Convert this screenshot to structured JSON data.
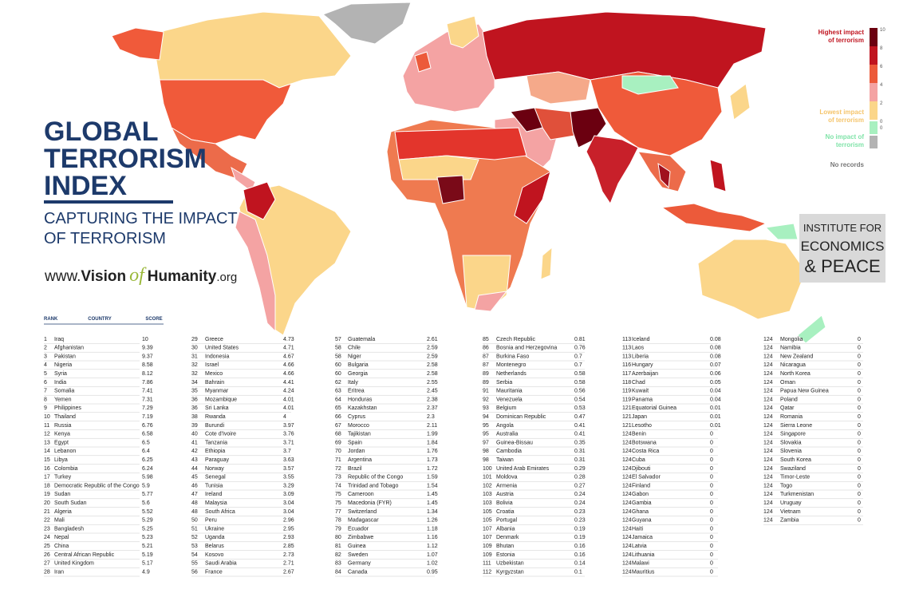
{
  "header": {
    "title_lines": [
      "GLOBAL",
      "TERRORISM",
      "INDEX"
    ],
    "subtitle_lines": [
      "CAPTURING THE IMPACT",
      "OF TERRORISM"
    ],
    "url": [
      "www.",
      "Vision",
      "of",
      "Humanity",
      ".org"
    ]
  },
  "logo": [
    "INSTITUTE FOR",
    "ECONOMICS",
    "& PEACE"
  ],
  "legend": {
    "highest": [
      "Highest impact",
      "of terrorism"
    ],
    "lowest": [
      "Lowest impact",
      "of terrorism"
    ],
    "none": [
      "No impact of",
      "terrorism"
    ],
    "no_records": "No records",
    "ticks": [
      10,
      8,
      6,
      4,
      2,
      0
    ],
    "no_impact_tick": 0,
    "colors": [
      "#6b0010",
      "#c0141f",
      "#ec5a3a",
      "#f4a3a3",
      "#fbd68a",
      "#a8f0c0",
      "#b3b3b3"
    ]
  },
  "table": {
    "columns": [
      "RANK",
      "COUNTRY",
      "SCORE"
    ],
    "rows": [
      [
        1,
        "Iraq",
        10
      ],
      [
        2,
        "Afghanistan",
        9.39
      ],
      [
        3,
        "Pakistan",
        9.37
      ],
      [
        4,
        "Nigeria",
        8.58
      ],
      [
        5,
        "Syria",
        8.12
      ],
      [
        6,
        "India",
        7.86
      ],
      [
        7,
        "Somalia",
        7.41
      ],
      [
        8,
        "Yemen",
        7.31
      ],
      [
        9,
        "Philippines",
        7.29
      ],
      [
        10,
        "Thailand",
        7.19
      ],
      [
        11,
        "Russia",
        6.76
      ],
      [
        12,
        "Kenya",
        6.58
      ],
      [
        13,
        "Egypt",
        6.5
      ],
      [
        14,
        "Lebanon",
        6.4
      ],
      [
        15,
        "Libya",
        6.25
      ],
      [
        16,
        "Colombia",
        6.24
      ],
      [
        17,
        "Turkey",
        5.98
      ],
      [
        18,
        "Democratic Republic of the Congo",
        5.9
      ],
      [
        19,
        "Sudan",
        5.77
      ],
      [
        20,
        "South Sudan",
        5.6
      ],
      [
        21,
        "Algeria",
        5.52
      ],
      [
        22,
        "Mali",
        5.29
      ],
      [
        23,
        "Bangladesh",
        5.25
      ],
      [
        24,
        "Nepal",
        5.23
      ],
      [
        25,
        "China",
        5.21
      ],
      [
        26,
        "Central African Republic",
        5.19
      ],
      [
        27,
        "United Kingdom",
        5.17
      ],
      [
        28,
        "Iran",
        4.9
      ],
      [
        29,
        "Greece",
        4.73
      ],
      [
        30,
        "United States",
        4.71
      ],
      [
        31,
        "Indonesia",
        4.67
      ],
      [
        32,
        "Israel",
        4.66
      ],
      [
        32,
        "Mexico",
        4.66
      ],
      [
        34,
        "Bahrain",
        4.41
      ],
      [
        35,
        "Myanmar",
        4.24
      ],
      [
        36,
        "Mozambique",
        4.01
      ],
      [
        36,
        "Sri Lanka",
        4.01
      ],
      [
        38,
        "Rwanda",
        4
      ],
      [
        39,
        "Burundi",
        3.97
      ],
      [
        40,
        "Cote d'Ivoire",
        3.76
      ],
      [
        41,
        "Tanzania",
        3.71
      ],
      [
        42,
        "Ethiopia",
        3.7
      ],
      [
        43,
        "Paraguay",
        3.63
      ],
      [
        44,
        "Norway",
        3.57
      ],
      [
        45,
        "Senegal",
        3.55
      ],
      [
        46,
        "Tunisia",
        3.29
      ],
      [
        47,
        "Ireland",
        3.09
      ],
      [
        48,
        "Malaysia",
        3.04
      ],
      [
        48,
        "South Africa",
        3.04
      ],
      [
        50,
        "Peru",
        2.96
      ],
      [
        51,
        "Ukraine",
        2.95
      ],
      [
        52,
        "Uganda",
        2.93
      ],
      [
        53,
        "Belarus",
        2.85
      ],
      [
        54,
        "Kosovo",
        2.73
      ],
      [
        55,
        "Saudi Arabia",
        2.71
      ],
      [
        56,
        "France",
        2.67
      ],
      [
        57,
        "Guatemala",
        2.61
      ],
      [
        58,
        "Chile",
        2.59
      ],
      [
        58,
        "Niger",
        2.59
      ],
      [
        60,
        "Bulgaria",
        2.58
      ],
      [
        60,
        "Georgia",
        2.58
      ],
      [
        62,
        "Italy",
        2.55
      ],
      [
        63,
        "Eritrea",
        2.45
      ],
      [
        64,
        "Honduras",
        2.38
      ],
      [
        65,
        "Kazakhstan",
        2.37
      ],
      [
        66,
        "Cyprus",
        2.3
      ],
      [
        67,
        "Morocco",
        2.11
      ],
      [
        68,
        "Tajikistan",
        1.99
      ],
      [
        69,
        "Spain",
        1.84
      ],
      [
        70,
        "Jordan",
        1.76
      ],
      [
        71,
        "Argentina",
        1.73
      ],
      [
        72,
        "Brazil",
        1.72
      ],
      [
        73,
        "Republic of the Congo",
        1.59
      ],
      [
        74,
        "Trinidad and Tobago",
        1.54
      ],
      [
        75,
        "Cameroon",
        1.45
      ],
      [
        75,
        "Macedonia (FYR)",
        1.45
      ],
      [
        77,
        "Switzerland",
        1.34
      ],
      [
        78,
        "Madagascar",
        1.26
      ],
      [
        79,
        "Ecuador",
        1.18
      ],
      [
        80,
        "Zimbabwe",
        1.16
      ],
      [
        81,
        "Guinea",
        1.12
      ],
      [
        82,
        "Sweden",
        1.07
      ],
      [
        83,
        "Germany",
        1.02
      ],
      [
        84,
        "Canada",
        0.95
      ],
      [
        85,
        "Czech Republic",
        0.81
      ],
      [
        86,
        "Bosnia and Herzegovina",
        0.76
      ],
      [
        87,
        "Burkina Faso",
        0.7
      ],
      [
        87,
        "Montenegro",
        0.7
      ],
      [
        89,
        "Netherlands",
        0.58
      ],
      [
        89,
        "Serbia",
        0.58
      ],
      [
        91,
        "Mauritania",
        0.56
      ],
      [
        92,
        "Venezuela",
        0.54
      ],
      [
        93,
        "Belgium",
        0.53
      ],
      [
        94,
        "Dominican Republic",
        0.47
      ],
      [
        95,
        "Angola",
        0.41
      ],
      [
        95,
        "Australia",
        0.41
      ],
      [
        97,
        "Guinea-Bissau",
        0.35
      ],
      [
        98,
        "Cambodia",
        0.31
      ],
      [
        98,
        "Taiwan",
        0.31
      ],
      [
        100,
        "United Arab Emirates",
        0.29
      ],
      [
        101,
        "Moldova",
        0.28
      ],
      [
        102,
        "Armenia",
        0.27
      ],
      [
        103,
        "Austria",
        0.24
      ],
      [
        103,
        "Bolivia",
        0.24
      ],
      [
        105,
        "Croatia",
        0.23
      ],
      [
        105,
        "Portugal",
        0.23
      ],
      [
        107,
        "Albania",
        0.19
      ],
      [
        107,
        "Denmark",
        0.19
      ],
      [
        109,
        "Bhutan",
        0.16
      ],
      [
        109,
        "Estonia",
        0.16
      ],
      [
        111,
        "Uzbekistan",
        0.14
      ],
      [
        112,
        "Kyrgyzstan",
        0.1
      ],
      [
        113,
        "Iceland",
        0.08
      ],
      [
        113,
        "Laos",
        0.08
      ],
      [
        113,
        "Liberia",
        0.08
      ],
      [
        116,
        "Hungary",
        0.07
      ],
      [
        117,
        "Azerbaijan",
        0.06
      ],
      [
        118,
        "Chad",
        0.05
      ],
      [
        119,
        "Kuwait",
        0.04
      ],
      [
        119,
        "Panama",
        0.04
      ],
      [
        121,
        "Equatorial Guinea",
        0.01
      ],
      [
        121,
        "Japan",
        0.01
      ],
      [
        121,
        "Lesotho",
        0.01
      ],
      [
        124,
        "Benin",
        0
      ],
      [
        124,
        "Botswana",
        0
      ],
      [
        124,
        "Costa Rica",
        0
      ],
      [
        124,
        "Cuba",
        0
      ],
      [
        124,
        "Djibouti",
        0
      ],
      [
        124,
        "El Salvador",
        0
      ],
      [
        124,
        "Finland",
        0
      ],
      [
        124,
        "Gabon",
        0
      ],
      [
        124,
        "Gambia",
        0
      ],
      [
        124,
        "Ghana",
        0
      ],
      [
        124,
        "Guyana",
        0
      ],
      [
        124,
        "Haiti",
        0
      ],
      [
        124,
        "Jamaica",
        0
      ],
      [
        124,
        "Latvia",
        0
      ],
      [
        124,
        "Lithuania",
        0
      ],
      [
        124,
        "Malawi",
        0
      ],
      [
        124,
        "Mauritius",
        0
      ],
      [
        124,
        "Mongolia",
        0
      ],
      [
        124,
        "Namibia",
        0
      ],
      [
        124,
        "New Zealand",
        0
      ],
      [
        124,
        "Nicaragua",
        0
      ],
      [
        124,
        "North Korea",
        0
      ],
      [
        124,
        "Oman",
        0
      ],
      [
        124,
        "Papua New Guinea",
        0
      ],
      [
        124,
        "Poland",
        0
      ],
      [
        124,
        "Qatar",
        0
      ],
      [
        124,
        "Romania",
        0
      ],
      [
        124,
        "Sierra Leone",
        0
      ],
      [
        124,
        "Singapore",
        0
      ],
      [
        124,
        "Slovakia",
        0
      ],
      [
        124,
        "Slovenia",
        0
      ],
      [
        124,
        "South Korea",
        0
      ],
      [
        124,
        "Swaziland",
        0
      ],
      [
        124,
        "Timor-Leste",
        0
      ],
      [
        124,
        "Togo",
        0
      ],
      [
        124,
        "Turkmenistan",
        0
      ],
      [
        124,
        "Uruguay",
        0
      ],
      [
        124,
        "Vietnam",
        0
      ],
      [
        124,
        "Zambia",
        0
      ]
    ]
  }
}
